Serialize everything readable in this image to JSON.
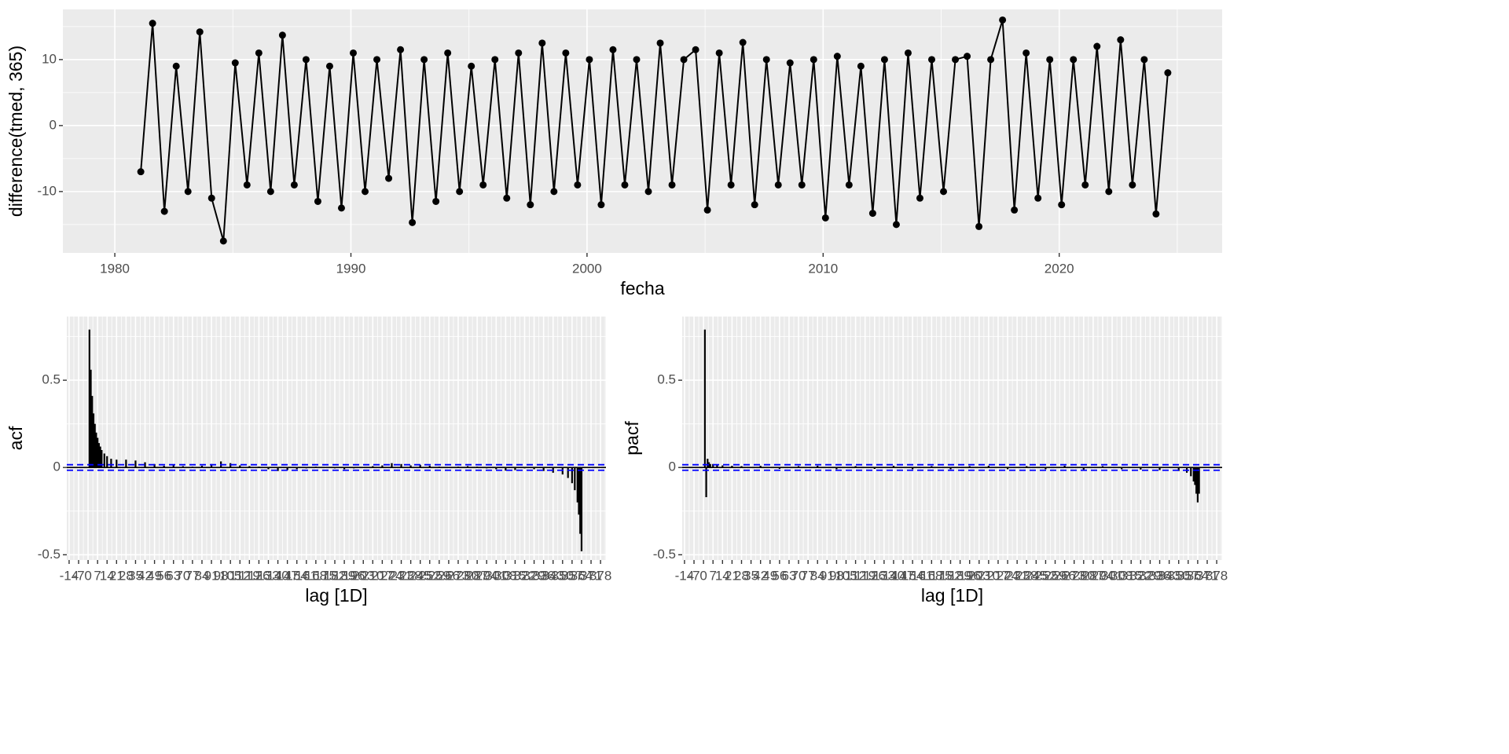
{
  "chart_data": [
    {
      "type": "line",
      "markers": true,
      "color": "#000000",
      "x_label": "fecha",
      "y_label": "difference(tmed, 365)",
      "x": [
        1981.1,
        1981.6,
        1982.1,
        1982.6,
        1983.1,
        1983.6,
        1984.1,
        1984.6,
        1985.1,
        1985.6,
        1986.1,
        1986.6,
        1987.1,
        1987.6,
        1988.1,
        1988.6,
        1989.1,
        1989.6,
        1990.1,
        1990.6,
        1991.1,
        1991.6,
        1992.1,
        1992.6,
        1993.1,
        1993.6,
        1994.1,
        1994.6,
        1995.1,
        1995.6,
        1996.1,
        1996.6,
        1997.1,
        1997.6,
        1998.1,
        1998.6,
        1999.1,
        1999.6,
        2000.1,
        2000.6,
        2001.1,
        2001.6,
        2002.1,
        2002.6,
        2003.1,
        2003.6,
        2004.1,
        2004.6,
        2005.1,
        2005.6,
        2006.1,
        2006.6,
        2007.1,
        2007.6,
        2008.1,
        2008.6,
        2009.1,
        2009.6,
        2010.1,
        2010.6,
        2011.1,
        2011.6,
        2012.1,
        2012.6,
        2013.1,
        2013.6,
        2014.1,
        2014.6,
        2015.1,
        2015.6,
        2016.1,
        2016.6,
        2017.1,
        2017.6,
        2018.1,
        2018.6,
        2019.1,
        2019.6,
        2020.1,
        2020.6,
        2021.1,
        2021.6,
        2022.1,
        2022.6,
        2023.1,
        2023.6,
        2024.1,
        2024.6
      ],
      "values": [
        -7,
        15.5,
        -13,
        9,
        -10,
        14.2,
        -11,
        -17.5,
        9.5,
        -9,
        11,
        -10,
        13.7,
        -9,
        10,
        -11.5,
        9,
        -12.5,
        11,
        -10,
        10,
        -8,
        11.5,
        -14.7,
        10,
        -11.5,
        11,
        -10,
        9,
        -9,
        10,
        -11,
        11,
        -12,
        12.5,
        -10,
        11,
        -9,
        10,
        -12,
        11.5,
        -9,
        10,
        -10,
        12.5,
        -9,
        10,
        11.5,
        -12.8,
        11,
        -9,
        12.6,
        -12,
        10,
        -9,
        9.5,
        -9,
        10,
        -14,
        10.5,
        -9,
        9,
        -13.3,
        10,
        -15,
        11,
        -11,
        10,
        -10,
        10,
        10.5,
        -15.3,
        10,
        16,
        -12.8,
        11,
        -11,
        10,
        -12,
        10,
        -9,
        12,
        -10,
        13,
        -9,
        10,
        -13.4,
        8
      ],
      "xlim": [
        1977.8,
        2026.9
      ],
      "xticks": [
        1980,
        1990,
        2000,
        2010,
        2020
      ],
      "ylim": [
        -19.3,
        17.6
      ],
      "yticks": [
        -10,
        0,
        10
      ],
      "grid": true
    },
    {
      "type": "bar",
      "color": "#000000",
      "x_label": "lag [1D]",
      "y_label": "acf",
      "x": [
        1,
        2,
        3,
        4,
        5,
        6,
        7,
        8,
        9,
        10,
        12,
        14,
        17,
        21,
        28,
        35,
        42,
        49,
        56,
        63,
        70,
        77,
        84,
        91,
        98,
        105,
        112,
        119,
        126,
        133,
        140,
        147,
        154,
        161,
        168,
        175,
        182,
        189,
        196,
        203,
        210,
        217,
        224,
        231,
        238,
        245,
        252,
        259,
        266,
        273,
        280,
        287,
        294,
        301,
        308,
        315,
        322,
        329,
        336,
        343,
        350,
        354,
        357,
        359,
        361,
        362,
        363,
        364
      ],
      "values": [
        0.79,
        0.56,
        0.41,
        0.31,
        0.25,
        0.2,
        0.17,
        0.14,
        0.12,
        0.1,
        0.08,
        0.065,
        0.05,
        0.045,
        0.045,
        0.04,
        0.03,
        0.02,
        0.01,
        0.012,
        0.008,
        0.005,
        0.01,
        0.02,
        0.035,
        0.025,
        0.012,
        0.008,
        0.005,
        -0.01,
        -0.02,
        -0.015,
        -0.01,
        -0.005,
        0.005,
        0.003,
        -0.005,
        -0.01,
        -0.005,
        0.003,
        0.008,
        0.012,
        0.025,
        0.02,
        0.012,
        0.015,
        0.01,
        0.005,
        0.003,
        0.005,
        0.008,
        0.005,
        -0.005,
        -0.01,
        -0.018,
        -0.015,
        -0.005,
        -0.01,
        -0.02,
        -0.03,
        -0.04,
        -0.06,
        -0.09,
        -0.13,
        -0.2,
        -0.27,
        -0.38,
        -0.48
      ],
      "hline": 0,
      "ci": [
        -0.0158,
        0.0158
      ],
      "ci_color": "#0000ff",
      "xlim": [
        -15.7,
        382
      ],
      "xticks": [
        -14,
        -7,
        0,
        7,
        14,
        21,
        28,
        35,
        42,
        49,
        56,
        63,
        70,
        77,
        84,
        91,
        98,
        105,
        112,
        119,
        126,
        133,
        140,
        147,
        154,
        161,
        168,
        175,
        182,
        189,
        196,
        203,
        210,
        217,
        224,
        231,
        238,
        245,
        252,
        259,
        266,
        273,
        280,
        287,
        294,
        301,
        308,
        315,
        322,
        329,
        336,
        343,
        350,
        357,
        364,
        371,
        378
      ],
      "ylim": [
        -0.53,
        0.865
      ],
      "yticks": [
        -0.5,
        0,
        0.5
      ],
      "grid": true
    },
    {
      "type": "bar",
      "color": "#000000",
      "x_label": "lag [1D]",
      "y_label": "pacf",
      "x": [
        1,
        2,
        3,
        4,
        5,
        7,
        10,
        14,
        21,
        28,
        42,
        56,
        70,
        84,
        98,
        112,
        126,
        140,
        154,
        168,
        182,
        196,
        210,
        224,
        238,
        252,
        266,
        280,
        294,
        308,
        322,
        336,
        350,
        356,
        359,
        361,
        362,
        363,
        364,
        365
      ],
      "values": [
        0.79,
        -0.17,
        0.05,
        0.03,
        0.02,
        0.02,
        0.015,
        0.012,
        0.01,
        0.008,
        0.01,
        -0.008,
        0.008,
        0.01,
        -0.01,
        0.008,
        -0.008,
        0.01,
        -0.01,
        0.008,
        -0.01,
        0.008,
        0.01,
        -0.01,
        0.008,
        -0.01,
        0.01,
        -0.012,
        0.008,
        -0.01,
        -0.012,
        -0.015,
        -0.02,
        -0.03,
        -0.05,
        -0.08,
        -0.1,
        -0.15,
        -0.2,
        -0.15
      ],
      "hline": 0,
      "ci": [
        -0.0158,
        0.0158
      ],
      "ci_color": "#0000ff",
      "xlim": [
        -15.7,
        382
      ],
      "xticks": [
        -14,
        -7,
        0,
        7,
        14,
        21,
        28,
        35,
        42,
        49,
        56,
        63,
        70,
        77,
        84,
        91,
        98,
        105,
        112,
        119,
        126,
        133,
        140,
        147,
        154,
        161,
        168,
        175,
        182,
        189,
        196,
        203,
        210,
        217,
        224,
        231,
        238,
        245,
        252,
        259,
        266,
        273,
        280,
        287,
        294,
        301,
        308,
        315,
        322,
        329,
        336,
        343,
        350,
        357,
        364,
        371,
        378
      ],
      "ylim": [
        -0.53,
        0.865
      ],
      "yticks": [
        -0.5,
        0,
        0.5
      ],
      "grid": true
    }
  ]
}
